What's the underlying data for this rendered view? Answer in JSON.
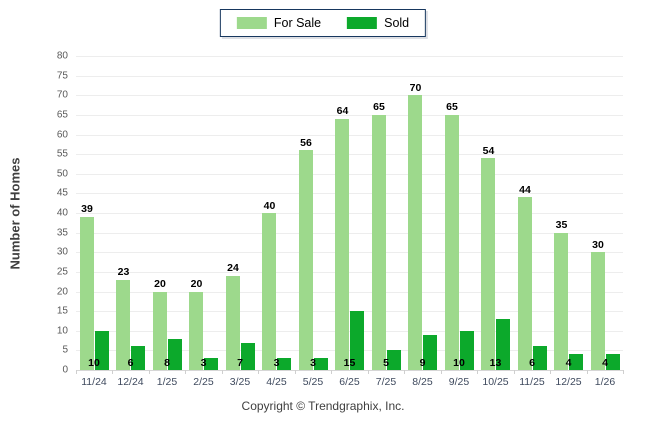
{
  "legend": {
    "items": [
      {
        "label": "For Sale",
        "color": "#9dd98c"
      },
      {
        "label": "Sold",
        "color": "#0ca92b"
      }
    ]
  },
  "footer": {
    "copyright": "Copyright © Trendgraphix, Inc."
  },
  "chart_data": {
    "type": "bar",
    "title": "",
    "categories": [
      "11/24",
      "12/24",
      "1/25",
      "2/25",
      "3/25",
      "4/25",
      "5/25",
      "6/25",
      "7/25",
      "8/25",
      "9/25",
      "10/25",
      "11/25",
      "12/25",
      "1/26"
    ],
    "series": [
      {
        "name": "For Sale",
        "color": "#9dd98c",
        "values": [
          39,
          23,
          20,
          20,
          24,
          40,
          56,
          64,
          65,
          70,
          65,
          54,
          44,
          35,
          30
        ]
      },
      {
        "name": "Sold",
        "color": "#0ca92b",
        "values": [
          10,
          6,
          8,
          3,
          7,
          3,
          3,
          15,
          5,
          9,
          10,
          13,
          6,
          4,
          4
        ]
      }
    ],
    "xlabel": "",
    "ylabel": "Number of Homes",
    "ylim": [
      0,
      80
    ],
    "ytick_step": 5,
    "grid": true,
    "legend_position": "top-center",
    "value_label_colors": "#000000",
    "gridline_color": "#ededed",
    "axis_color": "#d6d6d6"
  }
}
